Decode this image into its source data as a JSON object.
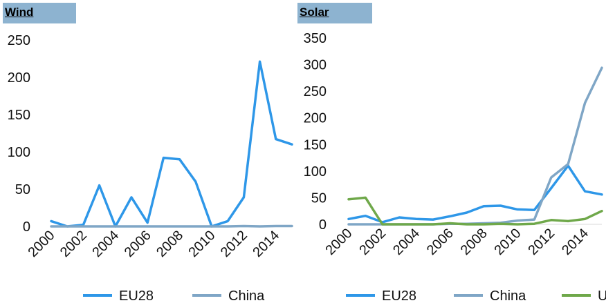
{
  "chart_data": [
    {
      "type": "line",
      "title": "Wind",
      "x": [
        2000,
        2001,
        2002,
        2003,
        2004,
        2005,
        2006,
        2007,
        2008,
        2009,
        2010,
        2011,
        2012,
        2013,
        2014,
        2015
      ],
      "x_tick_labels": [
        "2000",
        "2002",
        "2004",
        "2006",
        "2008",
        "2010",
        "2012",
        "2014"
      ],
      "ylim": [
        0,
        250
      ],
      "y_ticks": [
        0,
        50,
        100,
        150,
        200,
        250
      ],
      "series": [
        {
          "name": "EU28",
          "color": "#2e97e8",
          "values": [
            7,
            0,
            2,
            55,
            0,
            39,
            5,
            92,
            90,
            60,
            0,
            7,
            39,
            221,
            117,
            110
          ]
        },
        {
          "name": "China",
          "color": "#7fa6c6",
          "values": [
            0,
            0,
            0,
            0,
            0,
            0,
            0,
            0,
            0,
            0,
            0,
            0,
            0.5,
            0,
            0.5,
            0.5
          ]
        }
      ],
      "legend": "bottom"
    },
    {
      "type": "line",
      "title": "Solar",
      "x": [
        2000,
        2001,
        2002,
        2003,
        2004,
        2005,
        2006,
        2007,
        2008,
        2009,
        2010,
        2011,
        2012,
        2013,
        2014,
        2015
      ],
      "x_tick_labels": [
        "2000",
        "2002",
        "2004",
        "2006",
        "2008",
        "2010",
        "2012",
        "2014"
      ],
      "ylim": [
        0,
        350
      ],
      "y_ticks": [
        0,
        50,
        100,
        150,
        200,
        250,
        300,
        350
      ],
      "series": [
        {
          "name": "EU28",
          "color": "#2e97e8",
          "values": [
            10,
            16,
            4,
            13,
            10,
            9,
            15,
            22,
            34,
            35,
            28,
            27,
            68,
            110,
            62,
            56
          ]
        },
        {
          "name": "China",
          "color": "#7fa6c6",
          "values": [
            0,
            0,
            0,
            0,
            0,
            0,
            1,
            1,
            2,
            3,
            7,
            9,
            88,
            113,
            228,
            294
          ]
        },
        {
          "name": "USA",
          "color": "#6fa84a",
          "values": [
            47,
            50,
            0,
            0,
            0,
            0,
            2,
            0,
            0,
            1,
            0,
            1,
            8,
            6,
            10,
            25
          ]
        }
      ],
      "legend": "bottom"
    }
  ]
}
